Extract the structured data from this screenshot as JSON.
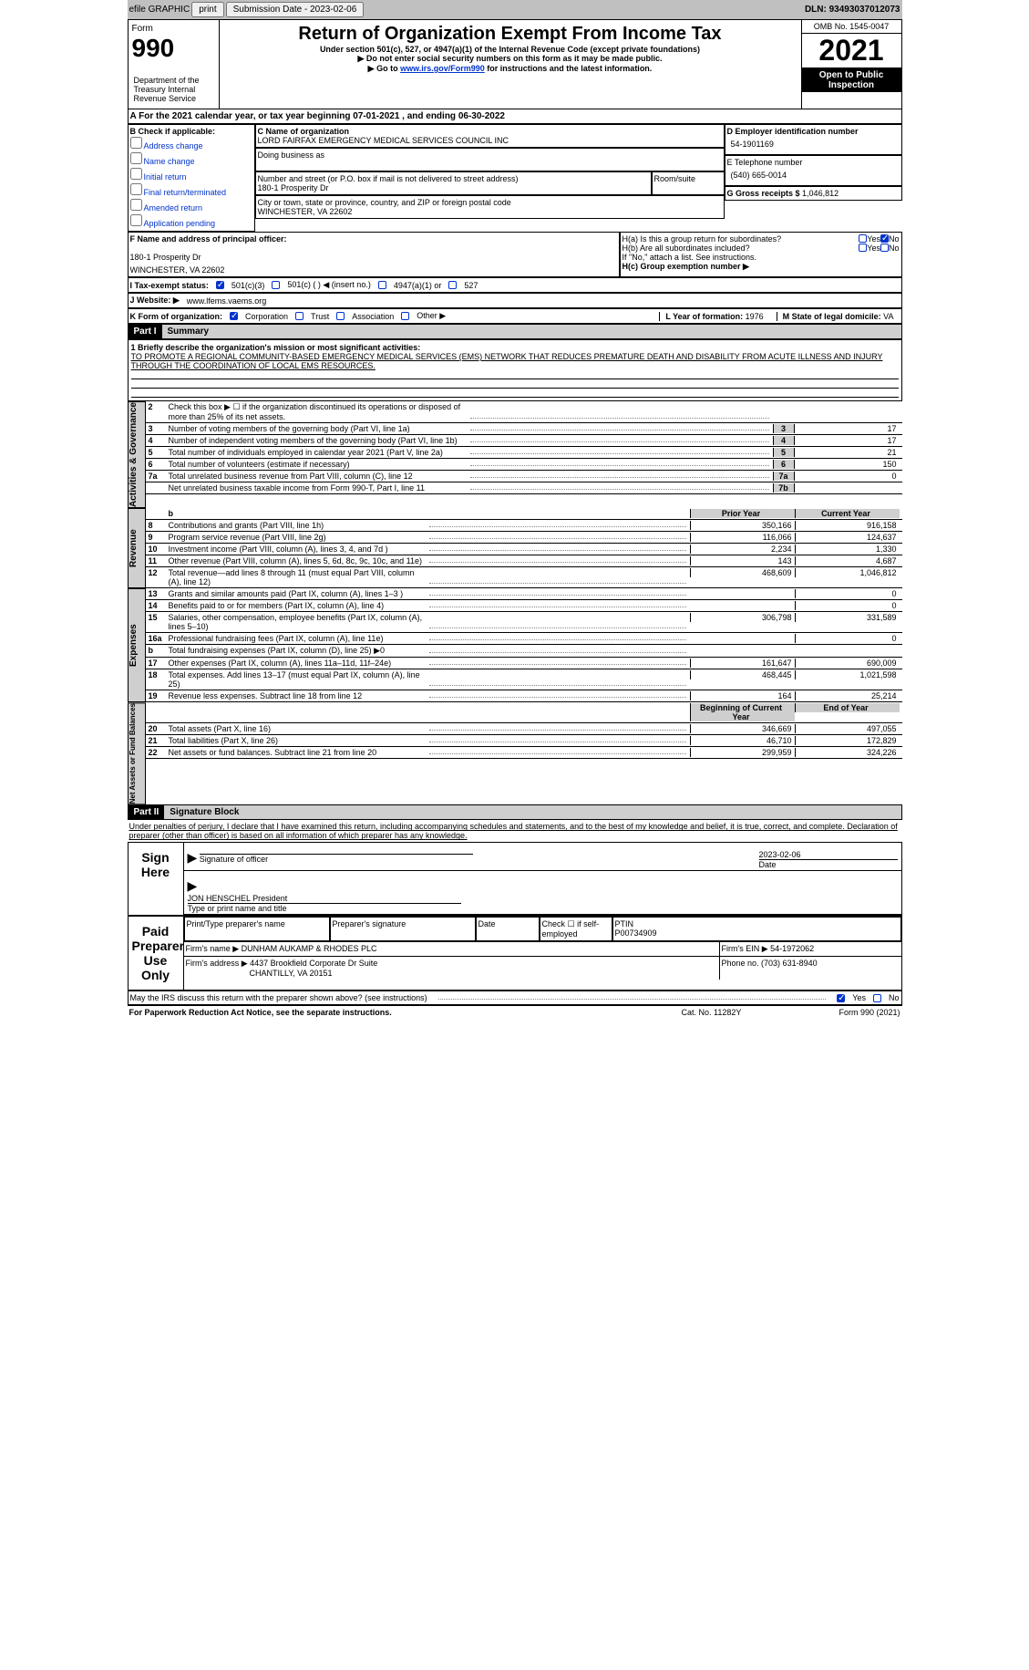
{
  "topbar": {
    "efile": "efile GRAPHIC",
    "print": "print",
    "subdate_lbl": "Submission Date - ",
    "subdate": "2023-02-06",
    "dln_lbl": "DLN: ",
    "dln": "93493037012073"
  },
  "header": {
    "form_word": "Form",
    "form_num": "990",
    "title": "Return of Organization Exempt From Income Tax",
    "sub1": "Under section 501(c), 527, or 4947(a)(1) of the Internal Revenue Code (except private foundations)",
    "sub2": "▶ Do not enter social security numbers on this form as it may be made public.",
    "goto_pref": "▶ Go to ",
    "goto_link": "www.irs.gov/Form990",
    "goto_suf": " for instructions and the latest information.",
    "dept": "Department of the Treasury\nInternal Revenue Service",
    "omb": "OMB No. 1545-0047",
    "year": "2021",
    "inspect": "Open to Public Inspection"
  },
  "rowA": {
    "text": "A For the 2021 calendar year, or tax year beginning 07-01-2021   , and ending 06-30-2022"
  },
  "colB": {
    "hdr": "B Check if applicable:",
    "items": [
      "Address change",
      "Name change",
      "Initial return",
      "Final return/terminated",
      "Amended return",
      "Application pending"
    ]
  },
  "colC": {
    "name_hdr": "C Name of organization",
    "org": "LORD FAIRFAX EMERGENCY MEDICAL SERVICES COUNCIL INC",
    "dba_hdr": "Doing business as",
    "addr_hdr": "Number and street (or P.O. box if mail is not delivered to street address)",
    "room_hdr": "Room/suite",
    "addr": "180-1 Prosperity Dr",
    "city_hdr": "City or town, state or province, country, and ZIP or foreign postal code",
    "city": "WINCHESTER, VA  22602"
  },
  "colD": {
    "ein_hdr": "D Employer identification number",
    "ein": "54-1901169",
    "tel_hdr": "E Telephone number",
    "tel": "(540) 665-0014",
    "gross_hdr": "G Gross receipts $ ",
    "gross": "1,046,812"
  },
  "rowF": {
    "hdr": "F  Name and address of principal officer:",
    "addr1": "180-1 Prosperity Dr",
    "addr2": "WINCHESTER, VA  22602"
  },
  "rowH": {
    "a": "H(a)  Is this a group return for subordinates?",
    "b": "H(b)  Are all subordinates included?",
    "note": "If \"No,\" attach a list. See instructions.",
    "c": "H(c)  Group exemption number ▶",
    "yes": "Yes",
    "no": "No"
  },
  "rowI": {
    "lbl": "I    Tax-exempt status:",
    "o1": "501(c)(3)",
    "o2": "501(c) (   ) ◀ (insert no.)",
    "o3": "4947(a)(1) or",
    "o4": "527"
  },
  "rowJ": {
    "lbl": "J    Website: ▶  ",
    "val": "www.lfems.vaems.org"
  },
  "rowK": {
    "lbl": "K Form of organization:",
    "o1": "Corporation",
    "o2": "Trust",
    "o3": "Association",
    "o4": "Other ▶",
    "L": "L Year of formation: ",
    "Lval": "1976",
    "M": "M State of legal domicile: ",
    "Mval": "VA"
  },
  "part1": {
    "hdr": "Part I",
    "title": "Summary"
  },
  "mission": {
    "line1_lbl": "1  Briefly describe the organization's mission or most significant activities:",
    "text": "TO PROMOTE A REGIONAL COMMUNITY-BASED EMERGENCY MEDICAL SERVICES (EMS) NETWORK THAT REDUCES PREMATURE DEATH AND DISABILITY FROM ACUTE ILLNESS AND INJURY THROUGH THE COORDINATION OF LOCAL EMS RESOURCES."
  },
  "verts": {
    "act": "Activities & Governance",
    "rev": "Revenue",
    "exp": "Expenses",
    "net": "Net Assets or\nFund Balances"
  },
  "lines_act": [
    {
      "n": "2",
      "t": "Check this box ▶ ☐ if the organization discontinued its operations or disposed of more than 25% of its net assets.",
      "nb": "",
      "v": ""
    },
    {
      "n": "3",
      "t": "Number of voting members of the governing body (Part VI, line 1a)",
      "nb": "3",
      "v": "17"
    },
    {
      "n": "4",
      "t": "Number of independent voting members of the governing body (Part VI, line 1b)",
      "nb": "4",
      "v": "17"
    },
    {
      "n": "5",
      "t": "Total number of individuals employed in calendar year 2021 (Part V, line 2a)",
      "nb": "5",
      "v": "21"
    },
    {
      "n": "6",
      "t": "Total number of volunteers (estimate if necessary)",
      "nb": "6",
      "v": "150"
    },
    {
      "n": "7a",
      "t": "Total unrelated business revenue from Part VIII, column (C), line 12",
      "nb": "7a",
      "v": "0"
    },
    {
      "n": "",
      "t": "Net unrelated business taxable income from Form 990-T, Part I, line 11",
      "nb": "7b",
      "v": ""
    }
  ],
  "cols_hdr": {
    "prior": "Prior Year",
    "cur": "Current Year"
  },
  "lines_rev": [
    {
      "n": "8",
      "t": "Contributions and grants (Part VIII, line 1h)",
      "p": "350,166",
      "c": "916,158"
    },
    {
      "n": "9",
      "t": "Program service revenue (Part VIII, line 2g)",
      "p": "116,066",
      "c": "124,637"
    },
    {
      "n": "10",
      "t": "Investment income (Part VIII, column (A), lines 3, 4, and 7d )",
      "p": "2,234",
      "c": "1,330"
    },
    {
      "n": "11",
      "t": "Other revenue (Part VIII, column (A), lines 5, 6d, 8c, 9c, 10c, and 11e)",
      "p": "143",
      "c": "4,687"
    },
    {
      "n": "12",
      "t": "Total revenue—add lines 8 through 11 (must equal Part VIII, column (A), line 12)",
      "p": "468,609",
      "c": "1,046,812"
    }
  ],
  "lines_exp": [
    {
      "n": "13",
      "t": "Grants and similar amounts paid (Part IX, column (A), lines 1–3 )",
      "p": "",
      "c": "0"
    },
    {
      "n": "14",
      "t": "Benefits paid to or for members (Part IX, column (A), line 4)",
      "p": "",
      "c": "0"
    },
    {
      "n": "15",
      "t": "Salaries, other compensation, employee benefits (Part IX, column (A), lines 5–10)",
      "p": "306,798",
      "c": "331,589"
    },
    {
      "n": "16a",
      "t": "Professional fundraising fees (Part IX, column (A), line 11e)",
      "p": "",
      "c": "0"
    },
    {
      "n": "b",
      "t": "Total fundraising expenses (Part IX, column (D), line 25) ▶0",
      "p": "shade",
      "c": "shade"
    },
    {
      "n": "17",
      "t": "Other expenses (Part IX, column (A), lines 11a–11d, 11f–24e)",
      "p": "161,647",
      "c": "690,009"
    },
    {
      "n": "18",
      "t": "Total expenses. Add lines 13–17 (must equal Part IX, column (A), line 25)",
      "p": "468,445",
      "c": "1,021,598"
    },
    {
      "n": "19",
      "t": "Revenue less expenses. Subtract line 18 from line 12",
      "p": "164",
      "c": "25,214"
    }
  ],
  "cols_hdr2": {
    "prior": "Beginning of Current Year",
    "cur": "End of Year"
  },
  "lines_net": [
    {
      "n": "20",
      "t": "Total assets (Part X, line 16)",
      "p": "346,669",
      "c": "497,055"
    },
    {
      "n": "21",
      "t": "Total liabilities (Part X, line 26)",
      "p": "46,710",
      "c": "172,829"
    },
    {
      "n": "22",
      "t": "Net assets or fund balances. Subtract line 21 from line 20",
      "p": "299,959",
      "c": "324,226"
    }
  ],
  "part2": {
    "hdr": "Part II",
    "title": "Signature Block"
  },
  "perjury": "Under penalties of perjury, I declare that I have examined this return, including accompanying schedules and statements, and to the best of my knowledge and belief, it is true, correct, and complete. Declaration of preparer (other than officer) is based on all information of which preparer has any knowledge.",
  "sign": {
    "lbl": "Sign Here",
    "sig_of": "Signature of officer",
    "date": "2023-02-06",
    "date_lbl": "Date",
    "name": "JON HENSCHEL President",
    "name_lbl": "Type or print name and title"
  },
  "prep": {
    "lbl": "Paid Preparer Use Only",
    "c1": "Print/Type preparer's name",
    "c2": "Preparer's signature",
    "c3": "Date",
    "c4": "Check ☐ if self-employed",
    "c5_lbl": "PTIN",
    "c5": "P00734909",
    "firm_lbl": "Firm's name   ▶ ",
    "firm": "DUNHAM AUKAMP & RHODES PLC",
    "ein_lbl": "Firm's EIN ▶ ",
    "ein": "54-1972062",
    "addr_lbl": "Firm's address ▶ ",
    "addr": "4437 Brookfield Corporate Dr Suite",
    "addr2": "CHANTILLY, VA  20151",
    "phone_lbl": "Phone no. ",
    "phone": "(703) 631-8940"
  },
  "discuss": {
    "text": "May the IRS discuss this return with the preparer shown above? (see instructions)",
    "yes": "Yes",
    "no": "No"
  },
  "footer": {
    "l": "For Paperwork Reduction Act Notice, see the separate instructions.",
    "c": "Cat. No. 11282Y",
    "r": "Form 990 (2021)"
  }
}
